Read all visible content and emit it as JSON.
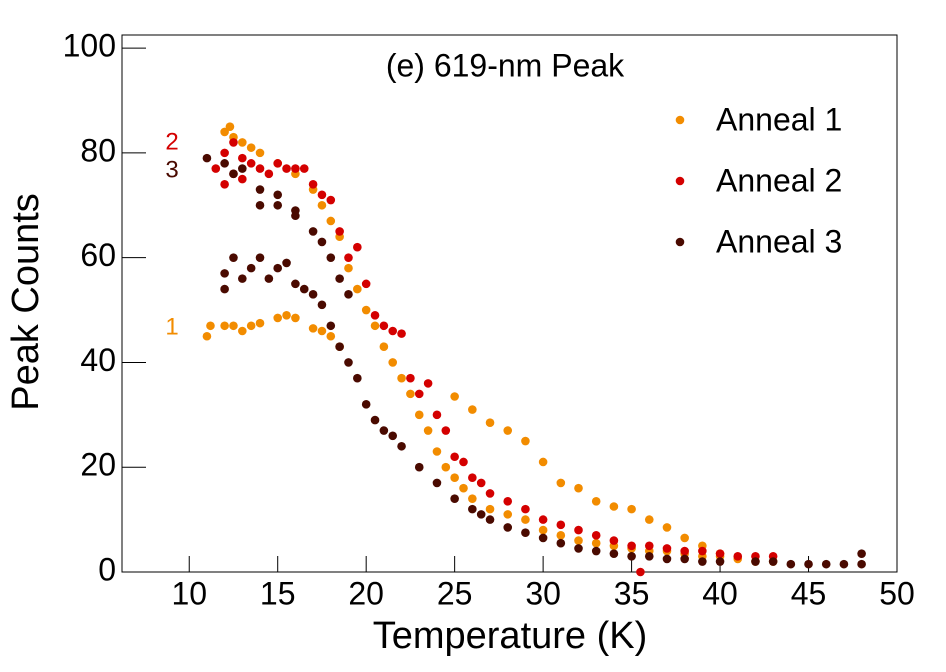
{
  "chart_data": {
    "type": "scatter",
    "title": "(e) 619-nm Peak",
    "x_label": "Temperature (K)",
    "y_label": "Peak Counts",
    "xlim": [
      6.2,
      50
    ],
    "ylim": [
      0,
      102.5
    ],
    "xticks": [
      10,
      15,
      20,
      25,
      30,
      35,
      40,
      45,
      50
    ],
    "yticks": [
      0,
      20,
      40,
      60,
      80,
      100
    ],
    "legend": "upper right",
    "annotations": [
      {
        "text": "2",
        "color": "#d40000"
      },
      {
        "text": "3",
        "color": "#4a0a00"
      },
      {
        "text": "1",
        "color": "#f28c00"
      }
    ],
    "series": [
      {
        "name": "Anneal 1",
        "color": "#f28c00",
        "x": [
          11,
          11.2,
          12,
          12.5,
          13,
          13.5,
          14,
          15,
          15.5,
          16,
          17,
          17.5,
          18,
          18.5,
          12,
          12.3,
          12.5,
          13,
          13.5,
          14,
          15,
          16,
          17,
          17.5,
          18,
          18.5,
          19,
          19.5,
          20,
          20.5,
          21,
          21.5,
          22,
          22.5,
          23,
          23.5,
          24,
          24.5,
          25,
          25.5,
          26,
          27,
          28,
          29,
          30,
          31,
          32,
          33,
          34,
          35,
          36,
          37,
          38,
          39,
          40,
          41,
          42,
          43,
          25,
          26,
          27,
          28,
          29,
          30,
          31,
          32,
          33,
          34,
          35,
          36,
          37,
          38,
          39,
          40
        ],
        "values": [
          45,
          47,
          47,
          47,
          46,
          47,
          47.5,
          48.5,
          49,
          48.5,
          46.5,
          46,
          45,
          43,
          84,
          85,
          83,
          82,
          81,
          80,
          78,
          76,
          73,
          70,
          67,
          64,
          58,
          54,
          50,
          47,
          43,
          40,
          37,
          34,
          30,
          27,
          23,
          20,
          18,
          16,
          14,
          12,
          11,
          10,
          8,
          7,
          6,
          5.5,
          5,
          4.5,
          4,
          4,
          3.5,
          3,
          3,
          2.5,
          2,
          2,
          33.5,
          31,
          28.5,
          27,
          25,
          21,
          17,
          16,
          13.5,
          12.5,
          12,
          10,
          8.5,
          6.5,
          5,
          3.5
        ]
      },
      {
        "name": "Anneal 2",
        "color": "#d40000",
        "x": [
          11.5,
          12,
          12,
          12.5,
          12.5,
          13,
          13,
          13.5,
          14,
          14.5,
          15,
          15.5,
          16,
          16.5,
          17,
          17.5,
          18,
          18.5,
          19,
          19.5,
          20,
          20.5,
          21,
          21.5,
          22,
          22.5,
          23,
          23.5,
          24,
          24.5,
          25,
          25.5,
          26,
          26.5,
          27,
          28,
          29,
          30,
          31,
          32,
          33,
          34,
          35,
          35.5,
          36,
          37,
          38,
          39,
          40,
          41,
          42,
          43
        ],
        "values": [
          77,
          80,
          74,
          82,
          76,
          79,
          75,
          78,
          77,
          76,
          78,
          77,
          77,
          77,
          74,
          72,
          71,
          65,
          60,
          62,
          55,
          49,
          47,
          46,
          45.5,
          37,
          34,
          36,
          30,
          27,
          22,
          21,
          18,
          17,
          15,
          13.5,
          12,
          10,
          9,
          8,
          7,
          6,
          5,
          0,
          5,
          4.5,
          4,
          4,
          3.5,
          3,
          3,
          3
        ]
      },
      {
        "name": "Anneal 3",
        "color": "#4a0a00",
        "x": [
          11,
          12,
          12.5,
          13,
          14,
          14,
          15,
          15,
          16,
          16,
          17,
          17.5,
          18,
          18.5,
          19,
          12,
          12,
          12.5,
          13,
          13.5,
          14,
          14.5,
          15,
          15.5,
          16,
          16.5,
          17,
          17.5,
          18,
          18.5,
          19,
          19.5,
          20,
          20.5,
          21,
          21.5,
          22,
          23,
          24,
          25,
          26,
          26.5,
          27,
          28,
          29,
          30,
          31,
          32,
          33,
          34,
          35,
          36,
          37,
          38,
          39,
          40,
          42,
          43,
          44,
          45,
          46,
          47,
          48,
          48
        ],
        "values": [
          79,
          78,
          76,
          77,
          73,
          70,
          72,
          70,
          69,
          68,
          65,
          63,
          60,
          56,
          53,
          57,
          54,
          60,
          56,
          58,
          60,
          56,
          58,
          59,
          55,
          54,
          53,
          51,
          47,
          43,
          40,
          37,
          32,
          29,
          27,
          26,
          24,
          20,
          17,
          14,
          12,
          11,
          10,
          8.5,
          7.5,
          6.5,
          5.5,
          4.5,
          4,
          3.5,
          3,
          3,
          2.5,
          2.5,
          2,
          2,
          2,
          2,
          1.5,
          1.5,
          1.5,
          1.5,
          1.5,
          3.5
        ]
      }
    ]
  }
}
